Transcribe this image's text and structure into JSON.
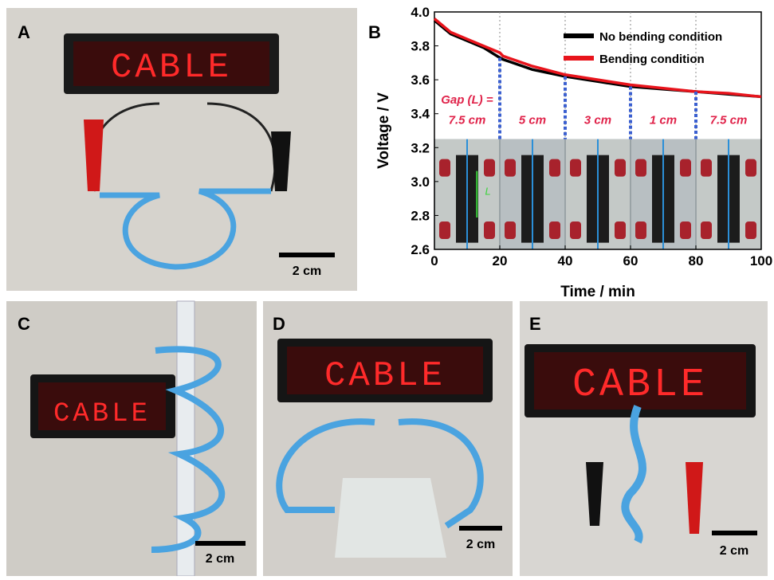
{
  "panels": {
    "a": {
      "label": "A",
      "display": "CABLE",
      "scale": "2 cm"
    },
    "c": {
      "label": "C",
      "display": "CABLE",
      "scale": "2 cm"
    },
    "d": {
      "label": "D",
      "display": "CABLE",
      "scale": "2 cm"
    },
    "e": {
      "label": "E",
      "display": "CABLE",
      "scale": "2 cm"
    }
  },
  "chart_data": {
    "type": "line",
    "label": "B",
    "x_label": "Time / min",
    "y_label": "Voltage / V",
    "x": [
      0,
      5,
      10,
      15,
      20,
      21,
      30,
      40,
      50,
      60,
      70,
      80,
      90,
      100
    ],
    "series": [
      {
        "name": "No bending condition",
        "color": "#000000",
        "values": [
          3.95,
          3.87,
          3.83,
          3.79,
          3.73,
          3.72,
          3.66,
          3.62,
          3.59,
          3.56,
          3.545,
          3.53,
          3.515,
          3.5
        ]
      },
      {
        "name": "Bending condition",
        "color": "#e8141c",
        "values": [
          3.96,
          3.88,
          3.84,
          3.8,
          3.76,
          3.74,
          3.68,
          3.63,
          3.6,
          3.57,
          3.55,
          3.53,
          3.52,
          3.5
        ]
      }
    ],
    "xlim": [
      0,
      100
    ],
    "xticks": [
      0,
      20,
      40,
      60,
      80,
      100
    ],
    "ylim": [
      2.6,
      4.0
    ],
    "yticks": [
      2.6,
      2.8,
      {
        "value": 3,
        "label": "3.0"
      },
      3.2,
      3.4,
      3.6,
      3.8,
      {
        "value": 4,
        "label": "4.0"
      }
    ],
    "legend": "upper right",
    "gap_label": "Gap (L) =",
    "gaps": [
      "7.5 cm",
      "5 cm",
      "3 cm",
      "1 cm",
      "7.5 cm"
    ],
    "boundaries": [
      20,
      40,
      60,
      80
    ],
    "photo_label": "L"
  }
}
